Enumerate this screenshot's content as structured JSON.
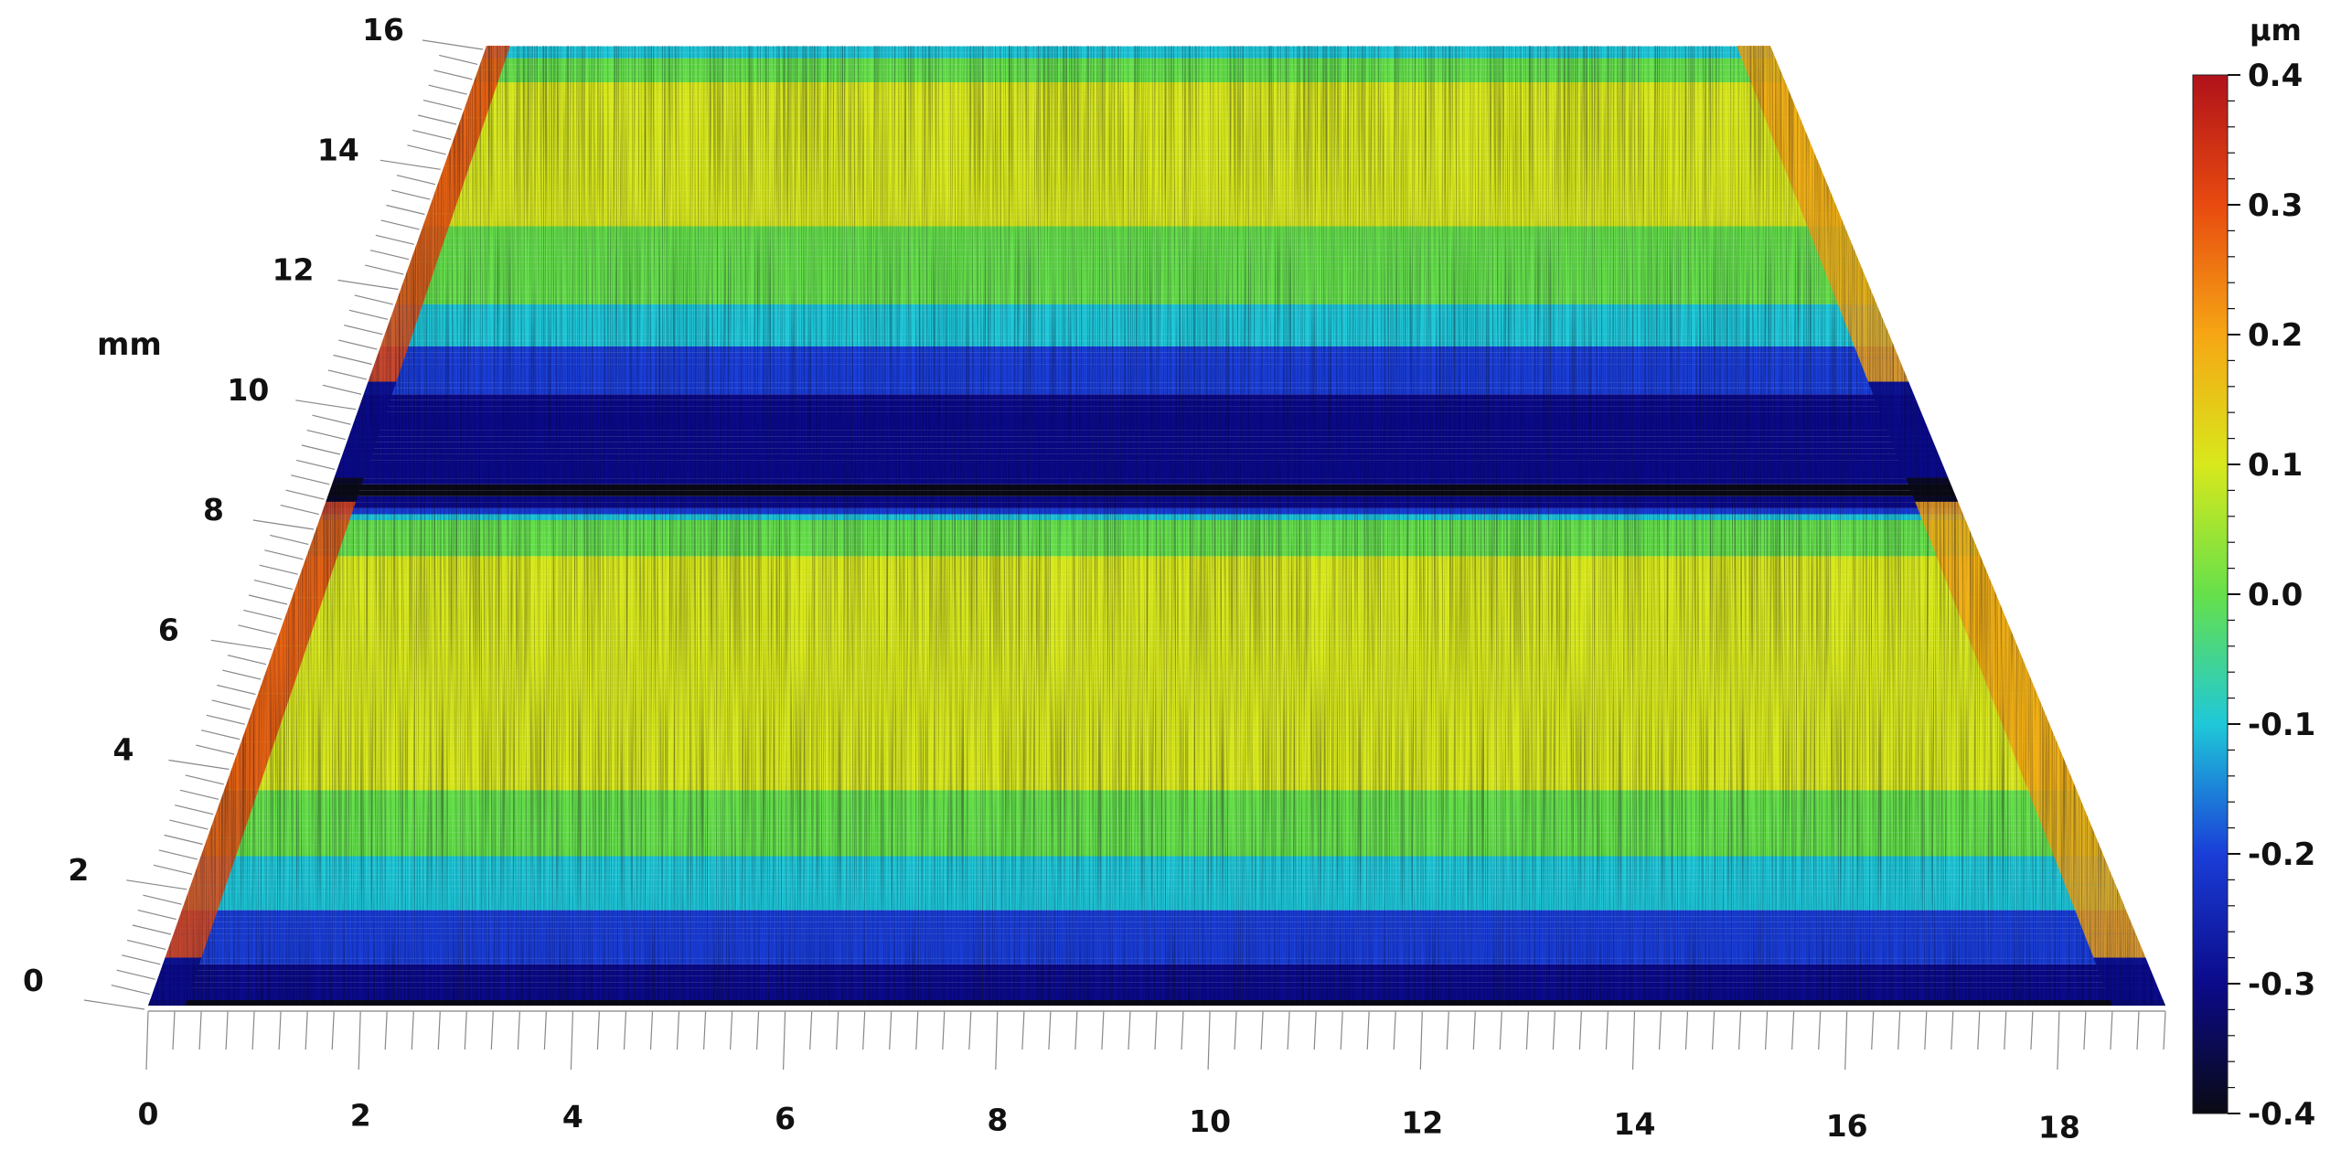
{
  "chart_data": {
    "type": "heatmap",
    "subtype": "3d-surface-topography",
    "title": "",
    "x_axis": {
      "label": "",
      "range": [
        0,
        19
      ],
      "tick_labels": [
        "0",
        "2",
        "4",
        "6",
        "8",
        "10",
        "12",
        "14",
        "16",
        "18"
      ]
    },
    "y_axis": {
      "label": "mm",
      "range": [
        0,
        16
      ],
      "tick_labels": [
        "0",
        "2",
        "4",
        "6",
        "8",
        "10",
        "12",
        "14",
        "16"
      ]
    },
    "colorbar": {
      "unit": "μm",
      "range": [
        -0.4,
        0.4
      ],
      "tick_labels": [
        "0.4",
        "0.3",
        "0.2",
        "0.1",
        "0.0",
        "-0.1",
        "-0.2",
        "-0.3",
        "-0.4"
      ],
      "colormap": [
        "#0a0a14",
        "#0b0a8a",
        "#1a3ed8",
        "#1fc8d8",
        "#66e04a",
        "#d8e81c",
        "#f6a614",
        "#e84a10",
        "#b0121a"
      ]
    },
    "height_profile_by_y": {
      "y_mm": [
        0,
        0.3,
        1,
        2,
        3,
        4,
        5,
        6,
        7,
        8,
        8.5,
        9,
        10,
        11,
        12,
        13,
        14,
        15,
        16
      ],
      "height_um": [
        -0.4,
        -0.3,
        -0.22,
        -0.1,
        0.0,
        0.08,
        0.12,
        0.1,
        0.08,
        0.02,
        -0.38,
        -0.32,
        -0.28,
        -0.15,
        0.0,
        0.05,
        0.1,
        0.15,
        -0.1
      ]
    }
  }
}
